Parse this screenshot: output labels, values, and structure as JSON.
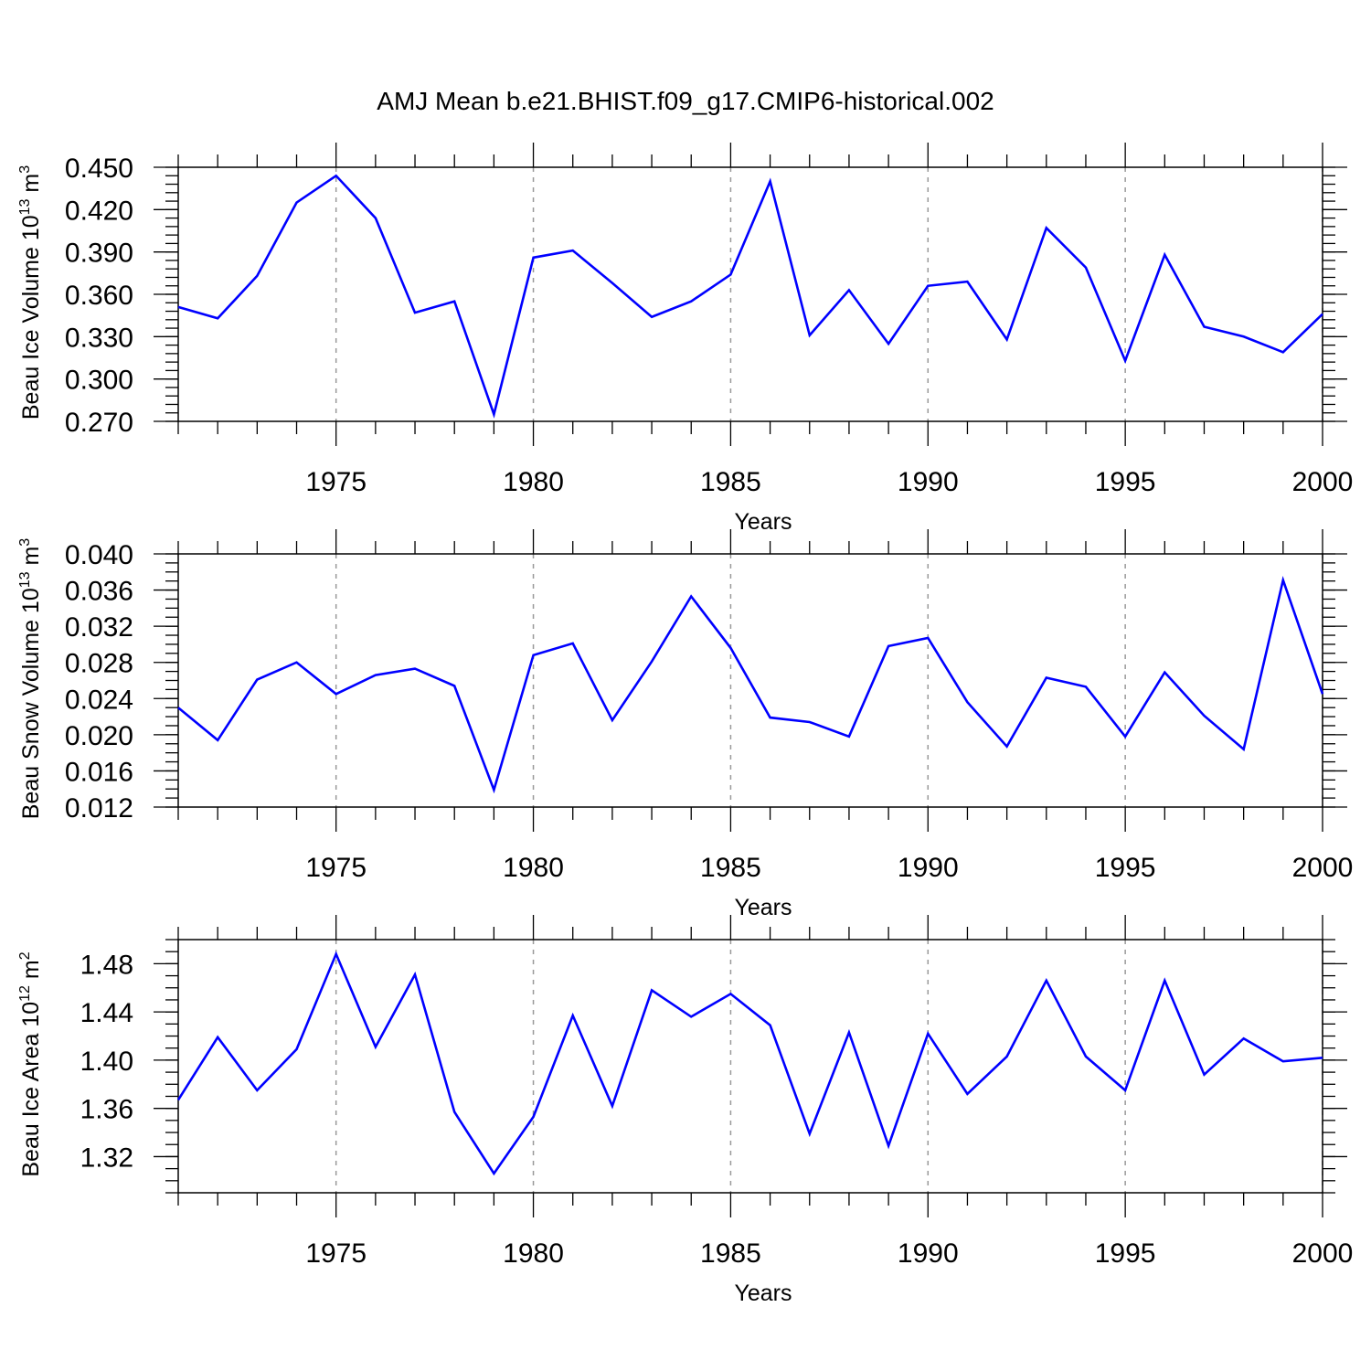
{
  "title": "AMJ Mean b.e21.BHIST.f09_g17.CMIP6-historical.002",
  "chart_data": [
    {
      "type": "line",
      "xlabel": "Years",
      "ylabel": {
        "main": "Beau Ice Volume 10",
        "exp": "13",
        "space": " m",
        "unit_exp": "3"
      },
      "x": [
        1971,
        1972,
        1973,
        1974,
        1975,
        1976,
        1977,
        1978,
        1979,
        1980,
        1981,
        1982,
        1983,
        1984,
        1985,
        1986,
        1987,
        1988,
        1989,
        1990,
        1991,
        1992,
        1993,
        1994,
        1995,
        1996,
        1997,
        1998,
        1999,
        2000
      ],
      "series": [
        {
          "values": [
            0.351,
            0.343,
            0.373,
            0.425,
            0.444,
            0.414,
            0.347,
            0.355,
            0.275,
            0.386,
            0.391,
            0.368,
            0.344,
            0.355,
            0.374,
            0.44,
            0.331,
            0.363,
            0.325,
            0.366,
            0.369,
            0.328,
            0.407,
            0.379,
            0.313,
            0.388,
            0.337,
            0.33,
            0.319,
            0.346
          ],
          "color": "#0000ff"
        }
      ],
      "xlim": [
        1971,
        2000
      ],
      "ylim": [
        0.27,
        0.45
      ],
      "yticks": [
        "0.270",
        "0.300",
        "0.330",
        "0.360",
        "0.390",
        "0.420",
        "0.450"
      ],
      "xticks": [
        "1975",
        "1980",
        "1985",
        "1990",
        "1995",
        "2000"
      ]
    },
    {
      "type": "line",
      "xlabel": "Years",
      "ylabel": {
        "main": "Beau Snow Volume 10",
        "exp": "13",
        "space": " m",
        "unit_exp": "3"
      },
      "x": [
        1971,
        1972,
        1973,
        1974,
        1975,
        1976,
        1977,
        1978,
        1979,
        1980,
        1981,
        1982,
        1983,
        1984,
        1985,
        1986,
        1987,
        1988,
        1989,
        1990,
        1991,
        1992,
        1993,
        1994,
        1995,
        1996,
        1997,
        1998,
        1999,
        2000
      ],
      "series": [
        {
          "values": [
            0.023,
            0.0194,
            0.0261,
            0.028,
            0.0245,
            0.0266,
            0.0273,
            0.0254,
            0.0139,
            0.0288,
            0.0301,
            0.0216,
            0.0281,
            0.0353,
            0.0296,
            0.0219,
            0.0214,
            0.0198,
            0.0298,
            0.0307,
            0.0236,
            0.0187,
            0.0263,
            0.0253,
            0.0198,
            0.0269,
            0.0221,
            0.0184,
            0.0371,
            0.0245
          ],
          "color": "#0000ff"
        }
      ],
      "xlim": [
        1971,
        2000
      ],
      "ylim": [
        0.012,
        0.04
      ],
      "yticks": [
        "0.012",
        "0.016",
        "0.020",
        "0.024",
        "0.028",
        "0.032",
        "0.036",
        "0.040"
      ],
      "xticks": [
        "1975",
        "1980",
        "1985",
        "1990",
        "1995",
        "2000"
      ]
    },
    {
      "type": "line",
      "xlabel": "Years",
      "ylabel": {
        "main": "Beau Ice Area 10",
        "exp": "12",
        "space": " m",
        "unit_exp": "2"
      },
      "x": [
        1971,
        1972,
        1973,
        1974,
        1975,
        1976,
        1977,
        1978,
        1979,
        1980,
        1981,
        1982,
        1983,
        1984,
        1985,
        1986,
        1987,
        1988,
        1989,
        1990,
        1991,
        1992,
        1993,
        1994,
        1995,
        1996,
        1997,
        1998,
        1999,
        2000
      ],
      "series": [
        {
          "values": [
            1.367,
            1.419,
            1.375,
            1.409,
            1.488,
            1.411,
            1.471,
            1.357,
            1.306,
            1.353,
            1.437,
            1.362,
            1.458,
            1.436,
            1.455,
            1.429,
            1.339,
            1.423,
            1.329,
            1.422,
            1.372,
            1.403,
            1.466,
            1.403,
            1.375,
            1.466,
            1.388,
            1.418,
            1.399,
            1.402
          ],
          "color": "#0000ff"
        }
      ],
      "xlim": [
        1971,
        2000
      ],
      "ylim": [
        1.29,
        1.5
      ],
      "yticks": [
        "1.32",
        "1.36",
        "1.40",
        "1.44",
        "1.48"
      ],
      "xticks": [
        "1975",
        "1980",
        "1985",
        "1990",
        "1995",
        "2000"
      ]
    }
  ]
}
